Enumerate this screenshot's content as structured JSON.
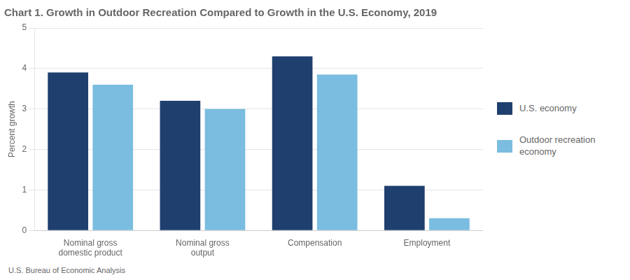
{
  "chart_data": {
    "type": "bar",
    "title": "Chart 1. Growth in Outdoor Recreation Compared to Growth in the U.S. Economy, 2019",
    "ylabel": "Percent growth",
    "categories": [
      "Nominal gross\ndomestic product",
      "Nominal gross\noutput",
      "Compensation",
      "Employment"
    ],
    "series": [
      {
        "name": "U.S. economy",
        "color": "#1F3F6E",
        "values": [
          3.9,
          3.2,
          4.3,
          1.1
        ]
      },
      {
        "name": "Outdoor recreation\neconomy",
        "color": "#7ABDE0",
        "values": [
          3.6,
          3.0,
          3.85,
          0.3
        ]
      }
    ],
    "ylim": [
      0,
      5
    ],
    "yticks": [
      0,
      1,
      2,
      3,
      4,
      5
    ],
    "grid": true,
    "legend": "right",
    "annotations": [
      "U.S. Bureau of Economic Analysis"
    ]
  }
}
